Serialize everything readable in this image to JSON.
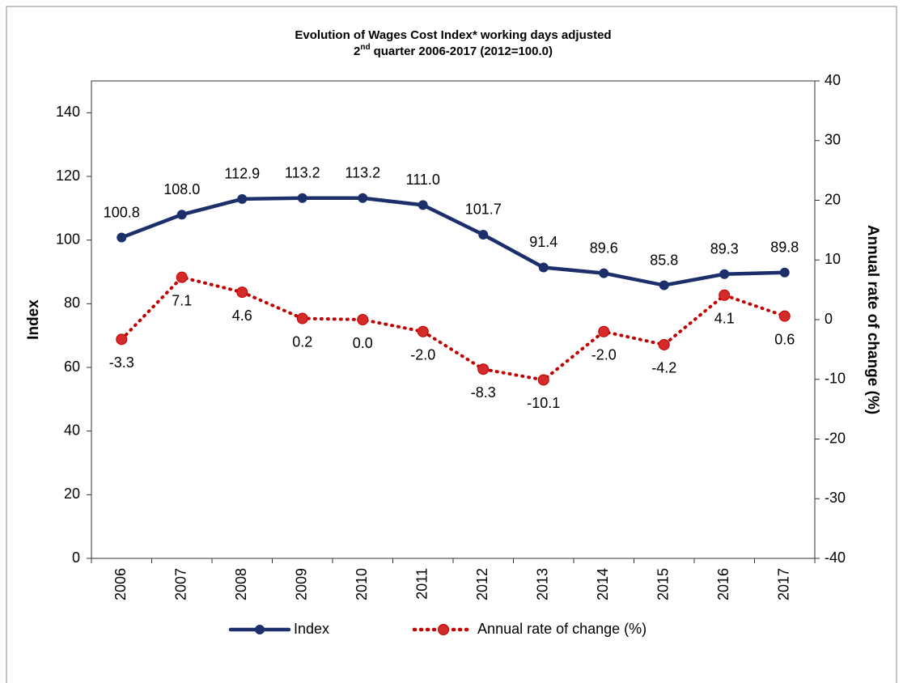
{
  "chart_data": {
    "type": "line",
    "title": "Evolution of Wages Cost Index* working days adjusted",
    "subtitle": {
      "number": "2",
      "suffix": "nd",
      "text": "quarter 2006-2017 (2012=100.0)"
    },
    "categories": [
      "2006",
      "2007",
      "2008",
      "2009",
      "2010",
      "2011",
      "2012",
      "2013",
      "2014",
      "2015",
      "2016",
      "2017"
    ],
    "series": [
      {
        "name": "Index",
        "color": "#1c2f6b",
        "style": "solid",
        "axis": "y",
        "values": [
          100.8,
          108.0,
          112.9,
          113.2,
          113.2,
          111.0,
          101.7,
          91.4,
          89.6,
          85.8,
          89.3,
          89.8
        ],
        "value_labels": [
          "100.8",
          "108.0",
          "112.9",
          "113.2",
          "113.2",
          "111.0",
          "101.7",
          "91.4",
          "89.6",
          "85.8",
          "89.3",
          "89.8"
        ]
      },
      {
        "name": "Annual rate of change (%)",
        "color": "#c00000",
        "style": "dotted",
        "axis": "y2",
        "values": [
          -3.3,
          7.1,
          4.6,
          0.2,
          0.0,
          -2.0,
          -8.3,
          -10.1,
          -2.0,
          -4.2,
          4.1,
          0.6
        ],
        "value_labels": [
          "-3.3",
          "7.1",
          "4.6",
          "0.2",
          "0.0",
          "-2.0",
          "-8.3",
          "-10.1",
          "-2.0",
          "-4.2",
          "4.1",
          "0.6"
        ]
      }
    ],
    "ylabel": "Index",
    "y2label": "Annual rate of change (%)",
    "ylim": [
      0,
      150
    ],
    "yticks": [
      0,
      20,
      40,
      60,
      80,
      100,
      120,
      140
    ],
    "y2lim": [
      -40,
      40
    ],
    "y2ticks": [
      -40,
      -30,
      -20,
      -10,
      0,
      10,
      20,
      30,
      40
    ],
    "grid": false,
    "legend": "bottom"
  }
}
